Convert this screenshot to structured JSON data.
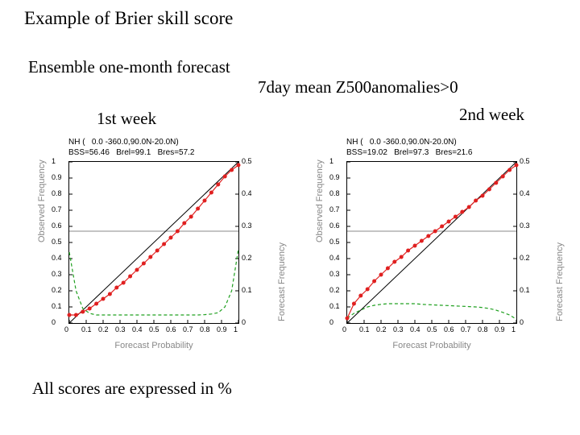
{
  "title": "Example of Brier skill score",
  "subtitle": "Ensemble one-month\nforecast",
  "center_label": "7day mean\nZ500anomalies>0",
  "week1_label": "1st week",
  "week2_label": "2nd week",
  "bottom_note": "All scores are expressed in %",
  "charts": [
    {
      "id": "week1",
      "header_line1": "NH (   0.0 -360.0,90.0N-20.0N)",
      "header_line2": "BSS=56.46   Brel=99.1   Bres=57.2",
      "xlabel": "Forecast Probability",
      "ylabel_left": "Observed Frequency",
      "ylabel_right": "Forecast Frequency",
      "xlim": [
        0,
        1
      ],
      "ylim_left": [
        0,
        1
      ],
      "ylim_right": [
        0,
        0.5
      ],
      "xticks": [
        0,
        0.1,
        0.2,
        0.3,
        0.4,
        0.5,
        0.6,
        0.7,
        0.8,
        0.9,
        1
      ],
      "xtick_labels": [
        "0",
        "0.1",
        "0.2",
        "0.3",
        "0.4",
        "0.5",
        "0.6",
        "0.7",
        "0.8",
        "0.9",
        "1"
      ],
      "yticks_left": [
        0,
        0.1,
        0.2,
        0.3,
        0.4,
        0.5,
        0.6,
        0.7,
        0.8,
        0.9,
        1
      ],
      "yticks_right": [
        0,
        0.1,
        0.2,
        0.3,
        0.4,
        0.5
      ],
      "diagonal": true,
      "hline_y": 0.57,
      "red_series": {
        "x": [
          0.0,
          0.04,
          0.08,
          0.12,
          0.16,
          0.2,
          0.24,
          0.28,
          0.32,
          0.36,
          0.4,
          0.44,
          0.48,
          0.52,
          0.56,
          0.6,
          0.64,
          0.68,
          0.72,
          0.76,
          0.8,
          0.84,
          0.88,
          0.92,
          0.96,
          1.0
        ],
        "y": [
          0.05,
          0.05,
          0.07,
          0.09,
          0.12,
          0.15,
          0.18,
          0.22,
          0.25,
          0.29,
          0.33,
          0.37,
          0.41,
          0.45,
          0.49,
          0.53,
          0.57,
          0.62,
          0.66,
          0.71,
          0.76,
          0.81,
          0.86,
          0.91,
          0.95,
          0.98
        ],
        "color": "#e02020",
        "marker": "circle",
        "line_width": 1.2,
        "marker_size": 2.5
      },
      "green_series": {
        "x": [
          0.0,
          0.04,
          0.08,
          0.12,
          0.16,
          0.2,
          0.24,
          0.28,
          0.32,
          0.36,
          0.4,
          0.44,
          0.48,
          0.52,
          0.56,
          0.6,
          0.64,
          0.68,
          0.72,
          0.76,
          0.8,
          0.84,
          0.88,
          0.92,
          0.96,
          1.0
        ],
        "y": [
          0.22,
          0.1,
          0.045,
          0.03,
          0.025,
          0.025,
          0.025,
          0.025,
          0.025,
          0.025,
          0.025,
          0.025,
          0.025,
          0.025,
          0.025,
          0.025,
          0.025,
          0.025,
          0.025,
          0.025,
          0.026,
          0.028,
          0.032,
          0.05,
          0.1,
          0.23
        ],
        "color": "#20a020",
        "dash": "4,3",
        "line_width": 1.2,
        "axis": "right"
      }
    },
    {
      "id": "week2",
      "header_line1": "NH (   0.0 -360.0,90.0N-20.0N)",
      "header_line2": "BSS=19.02   Brel=97.3   Bres=21.6",
      "xlabel": "Forecast Probability",
      "ylabel_left": "Observed Frequency",
      "ylabel_right": "Forecast Frequency",
      "xlim": [
        0,
        1
      ],
      "ylim_left": [
        0,
        1
      ],
      "ylim_right": [
        0,
        0.5
      ],
      "xticks": [
        0,
        0.1,
        0.2,
        0.3,
        0.4,
        0.5,
        0.6,
        0.7,
        0.8,
        0.9,
        1
      ],
      "xtick_labels": [
        "0",
        "0.1",
        "0.2",
        "0.3",
        "0.4",
        "0.5",
        "0.6",
        "0.7",
        "0.8",
        "0.9",
        "1"
      ],
      "yticks_left": [
        0,
        0.1,
        0.2,
        0.3,
        0.4,
        0.5,
        0.6,
        0.7,
        0.8,
        0.9,
        1
      ],
      "yticks_right": [
        0,
        0.1,
        0.2,
        0.3,
        0.4,
        0.5
      ],
      "diagonal": true,
      "hline_y": 0.57,
      "red_series": {
        "x": [
          0.0,
          0.04,
          0.08,
          0.12,
          0.16,
          0.2,
          0.24,
          0.28,
          0.32,
          0.36,
          0.4,
          0.44,
          0.48,
          0.52,
          0.56,
          0.6,
          0.64,
          0.68,
          0.72,
          0.76,
          0.8,
          0.84,
          0.88,
          0.92,
          0.96,
          1.0
        ],
        "y": [
          0.03,
          0.12,
          0.17,
          0.21,
          0.26,
          0.3,
          0.34,
          0.38,
          0.41,
          0.45,
          0.48,
          0.51,
          0.54,
          0.57,
          0.6,
          0.63,
          0.66,
          0.69,
          0.72,
          0.76,
          0.79,
          0.83,
          0.87,
          0.91,
          0.95,
          0.98
        ],
        "color": "#e02020",
        "marker": "circle",
        "line_width": 1.2,
        "marker_size": 2.5
      },
      "green_series": {
        "x": [
          0.0,
          0.04,
          0.08,
          0.12,
          0.16,
          0.2,
          0.24,
          0.28,
          0.32,
          0.36,
          0.4,
          0.44,
          0.48,
          0.52,
          0.56,
          0.6,
          0.64,
          0.68,
          0.72,
          0.76,
          0.8,
          0.84,
          0.88,
          0.92,
          0.96,
          1.0
        ],
        "y": [
          0.015,
          0.03,
          0.04,
          0.05,
          0.055,
          0.058,
          0.06,
          0.06,
          0.06,
          0.06,
          0.06,
          0.058,
          0.057,
          0.056,
          0.055,
          0.054,
          0.053,
          0.052,
          0.051,
          0.05,
          0.048,
          0.045,
          0.04,
          0.033,
          0.025,
          0.012
        ],
        "color": "#20a020",
        "dash": "4,3",
        "line_width": 1.2,
        "axis": "right"
      }
    }
  ]
}
